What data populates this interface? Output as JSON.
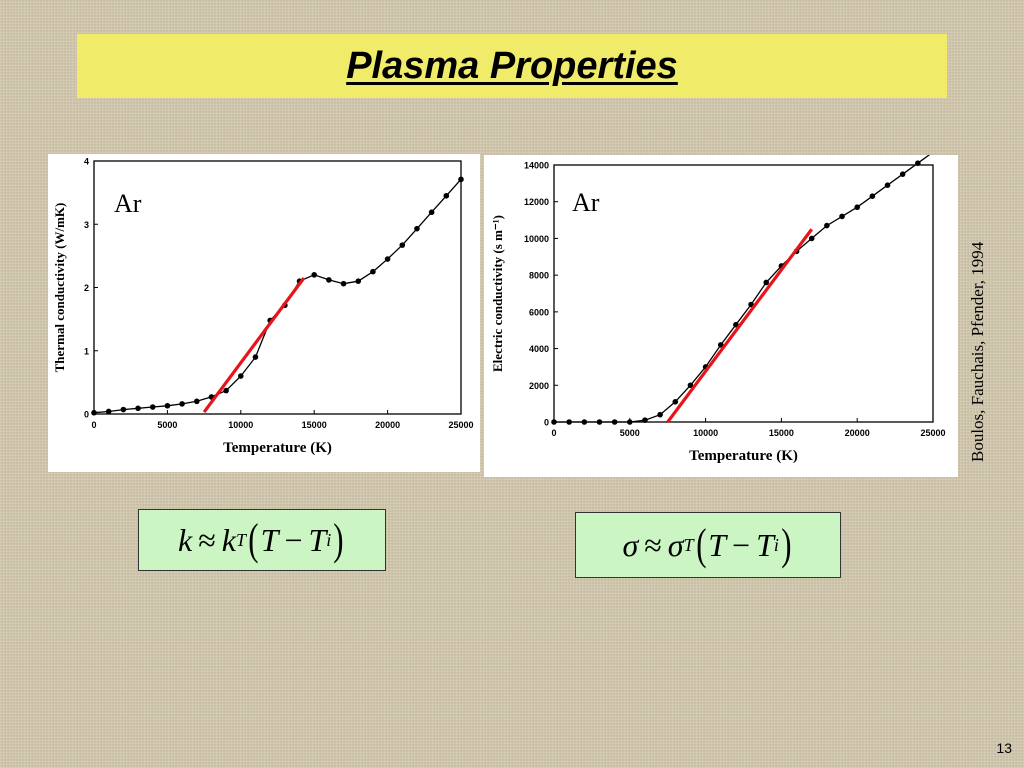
{
  "slide": {
    "title": "Plasma Properties",
    "credit": "Boulos, Fauchais, Pfender, 1994",
    "page_number": "13",
    "colors": {
      "title_bar": "#f0ec6a",
      "formula_box": "#ccf5c4",
      "fit_line": "#e8141b"
    }
  },
  "formulas": {
    "left": {
      "lhs": "k",
      "approx": "≈",
      "coef": "k",
      "coef_sub": "T",
      "var": "T",
      "minus": "−",
      "var2": "T",
      "var2_sub": "i"
    },
    "right": {
      "lhs": "σ",
      "approx": "≈",
      "coef": "σ",
      "coef_sub": "T",
      "var": "T",
      "minus": "−",
      "var2": "T",
      "var2_sub": "i"
    }
  },
  "chart_data": [
    {
      "type": "line",
      "annotation": "Ar",
      "xlabel": "Temperature (K)",
      "ylabel": "Thermal conductivity (W/mK)",
      "xlim": [
        0,
        25000
      ],
      "ylim": [
        0,
        4
      ],
      "xticks": [
        0,
        5000,
        10000,
        15000,
        20000,
        25000
      ],
      "yticks": [
        0,
        1,
        2,
        3,
        4
      ],
      "series": [
        {
          "x": [
            0,
            1000,
            2000,
            3000,
            4000,
            5000,
            6000,
            7000,
            8000,
            9000,
            10000,
            11000,
            12000,
            13000,
            14000,
            15000,
            16000,
            17000,
            18000,
            19000,
            20000,
            21000,
            22000,
            23000,
            24000,
            25000
          ],
          "y": [
            0.02,
            0.04,
            0.07,
            0.09,
            0.11,
            0.13,
            0.16,
            0.2,
            0.27,
            0.37,
            0.6,
            0.9,
            1.48,
            1.72,
            2.1,
            2.2,
            2.12,
            2.06,
            2.1,
            2.25,
            2.45,
            2.67,
            2.93,
            3.19,
            3.45,
            3.71
          ]
        }
      ],
      "fit_line": {
        "x": [
          7500,
          14300
        ],
        "y": [
          0.03,
          2.15
        ]
      }
    },
    {
      "type": "line",
      "annotation": "Ar",
      "xlabel": "Temperature (K)",
      "ylabel": "Electric conductivity (s m⁻¹)",
      "xlim": [
        0,
        25000
      ],
      "ylim": [
        0,
        14000
      ],
      "xticks": [
        0,
        5000,
        10000,
        15000,
        20000,
        25000
      ],
      "yticks": [
        0,
        2000,
        4000,
        6000,
        8000,
        10000,
        12000,
        14000
      ],
      "series": [
        {
          "x": [
            0,
            1000,
            2000,
            3000,
            4000,
            5000,
            6000,
            7000,
            8000,
            9000,
            10000,
            11000,
            12000,
            13000,
            14000,
            15000,
            16000,
            17000,
            18000,
            19000,
            20000,
            21000,
            22000,
            23000,
            24000,
            25000
          ],
          "y": [
            0,
            0,
            0,
            0,
            0,
            0,
            100,
            400,
            1100,
            2000,
            3000,
            4200,
            5300,
            6400,
            7600,
            8500,
            9300,
            10000,
            10700,
            11200,
            11700,
            12300,
            12900,
            13500,
            14100,
            14700
          ]
        }
      ],
      "fit_line": {
        "x": [
          7500,
          17000
        ],
        "y": [
          0,
          10500
        ]
      }
    }
  ]
}
